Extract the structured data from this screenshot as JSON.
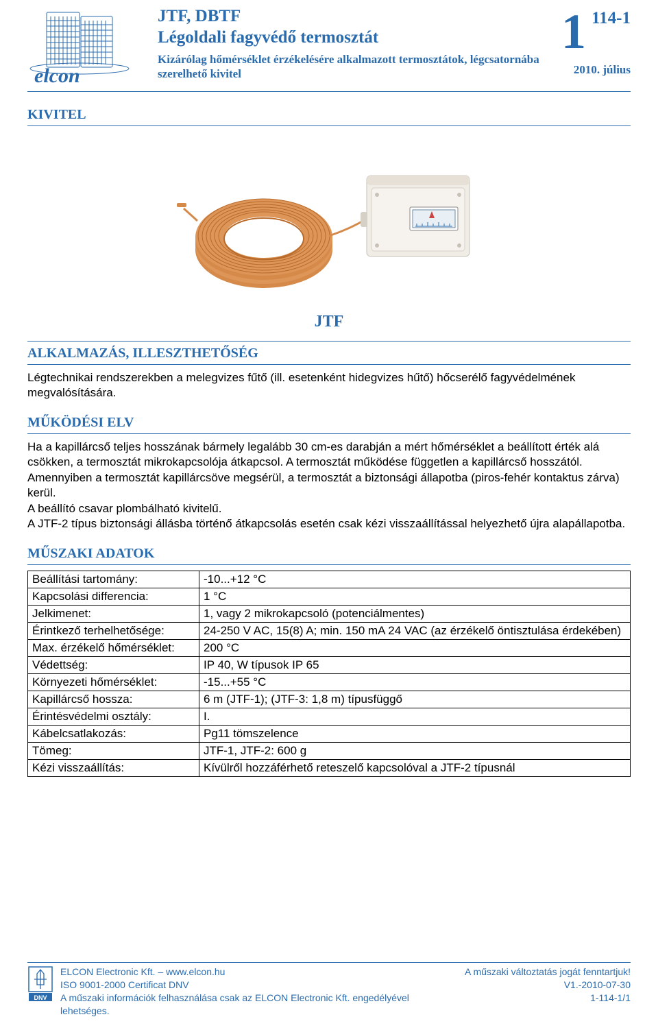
{
  "header": {
    "title": "JTF, DBTF",
    "subtitle": "Légoldali fagyvédő termosztát",
    "desc": "Kizárólag hőmérséklet érzékelésére alkalmazott termosztátok, légcsatornába szerelhető kivitel",
    "big_one": "1",
    "page_code": "114-1",
    "date": "2010. július"
  },
  "sections": {
    "kivitel": "KIVITEL",
    "product_label": "JTF",
    "alkalmazas_heading": "ALKALMAZÁS, ILLESZTHETŐSÉG",
    "alkalmazas_body": "Légtechnikai rendszerekben a melegvizes fűtő (ill. esetenként hidegvizes hűtő) hőcserélő fagyvédelmének megvalósítására.",
    "mukodesi_heading": "MŰKÖDÉSI ELV",
    "mukodesi_body": "Ha a kapillárcső teljes hosszának bármely legalább 30 cm-es darabján a mért hőmérséklet a beállított érték alá csökken, a termosztát mikrokapcsolója átkapcsol. A termosztát működése független a kapillárcső hosszától. Amennyiben a termosztát kapillárcsöve megsérül, a termosztát a biztonsági állapotba (piros-fehér kontaktus zárva) kerül.\nA beállító csavar plombálható kivitelű.\nA JTF-2 típus biztonsági állásba történő átkapcsolás esetén csak kézi visszaállítással helyezhető újra alapállapotba.",
    "muszaki_heading": "MŰSZAKI ADATOK"
  },
  "specs": [
    {
      "label": "Beállítási tartomány:",
      "value": "-10...+12 °C"
    },
    {
      "label": "Kapcsolási differencia:",
      "value": "1 °C"
    },
    {
      "label": "Jelkimenet:",
      "value": "1, vagy 2 mikrokapcsoló (potenciálmentes)"
    },
    {
      "label": "Érintkező terhelhetősége:",
      "value": "24-250 V AC, 15(8) A; min. 150 mA 24 VAC (az érzékelő öntisztulása érdekében)"
    },
    {
      "label": "Max. érzékelő hőmérséklet:",
      "value": "200 °C"
    },
    {
      "label": "Védettség:",
      "value": "IP 40, W típusok IP 65"
    },
    {
      "label": "Környezeti hőmérséklet:",
      "value": "-15...+55 °C"
    },
    {
      "label": "Kapillárcső hossza:",
      "value": "6 m (JTF-1); (JTF-3: 1,8 m) típusfüggő"
    },
    {
      "label": "Érintésvédelmi osztály:",
      "value": "I."
    },
    {
      "label": "Kábelcsatlakozás:",
      "value": "Pg11 tömszelence"
    },
    {
      "label": "Tömeg:",
      "value": "JTF-1, JTF-2: 600 g"
    },
    {
      "label": "Kézi visszaállítás:",
      "value": "Kívülről hozzáférhető reteszelő kapcsolóval a JTF-2 típusnál"
    }
  ],
  "footer": {
    "line1a": "ELCON Electronic Kft.",
    "line1sep": "  –  ",
    "line1b": "www.elcon.hu",
    "line2": "ISO 9001-2000 Certificat DNV",
    "line3": "A műszaki információk felhasználása csak az ELCON Electronic Kft. engedélyével lehetséges.",
    "right1": "A műszaki változtatás jogát fenntartjuk!",
    "right2": "V1.-2010-07-30",
    "right3": "1-114-1/1"
  },
  "colors": {
    "brand_blue": "#2a6bad",
    "copper": "#d68a4a",
    "copper_dark": "#b86a2a",
    "device_body": "#f0ece6",
    "device_shadow": "#c8c2b8"
  }
}
